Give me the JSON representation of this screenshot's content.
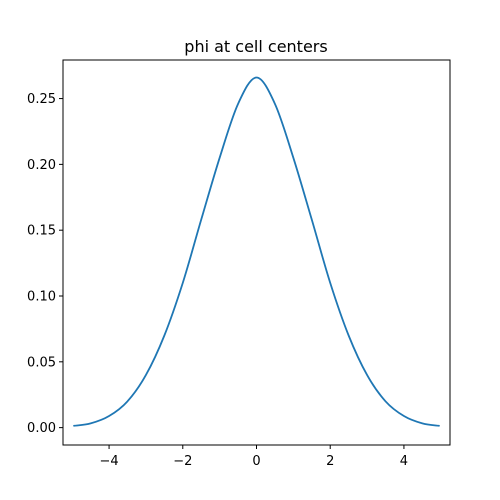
{
  "chart_data": {
    "type": "line",
    "title": "phi at cell centers",
    "xlabel": "",
    "ylabel": "",
    "xlim": [
      -5.25,
      5.25
    ],
    "ylim": [
      -0.0132,
      0.2793
    ],
    "x_ticks": [
      -4,
      -2,
      0,
      2,
      4
    ],
    "x_tick_labels": [
      "−4",
      "−2",
      "0",
      "2",
      "4"
    ],
    "y_ticks": [
      0.0,
      0.05,
      0.1,
      0.15,
      0.2,
      0.25
    ],
    "y_tick_labels": [
      "0.00",
      "0.05",
      "0.10",
      "0.15",
      "0.20",
      "0.25"
    ],
    "grid": false,
    "series": [
      {
        "color": "#1f77b4",
        "x": [
          -4.95,
          -4.5,
          -4.0,
          -3.5,
          -3.0,
          -2.5,
          -2.0,
          -1.5,
          -1.0,
          -0.5,
          0.0,
          0.5,
          1.0,
          1.5,
          2.0,
          2.5,
          3.0,
          3.5,
          4.0,
          4.5,
          4.95
        ],
        "y": [
          0.0014,
          0.0032,
          0.0088,
          0.02,
          0.04,
          0.07,
          0.11,
          0.158,
          0.205,
          0.246,
          0.266,
          0.246,
          0.205,
          0.158,
          0.11,
          0.07,
          0.04,
          0.02,
          0.0088,
          0.0032,
          0.0014
        ]
      }
    ]
  }
}
